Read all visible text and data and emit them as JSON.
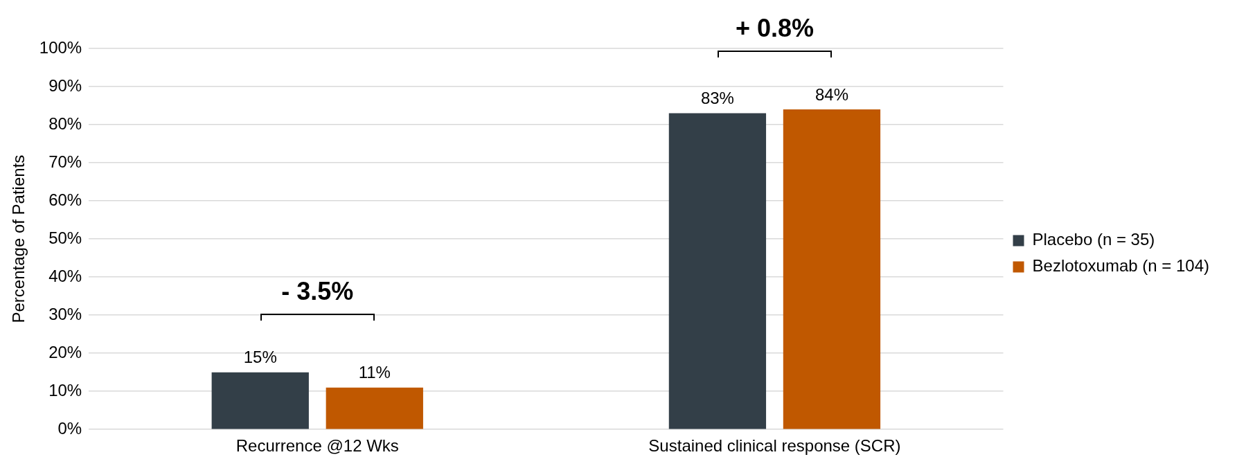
{
  "chart_data": {
    "type": "bar",
    "ylabel": "Percentage of Patients",
    "categories": [
      "Recurrence @12 Wks",
      "Sustained clinical response (SCR)"
    ],
    "series": [
      {
        "name": "Placebo (n = 35)",
        "color": "#333f48",
        "values": [
          15,
          83
        ],
        "value_labels": [
          "15%",
          "83%"
        ]
      },
      {
        "name": "Bezlotoxumab (n = 104)",
        "color": "#c05800",
        "values": [
          11,
          84
        ],
        "value_labels": [
          "11%",
          "84%"
        ]
      }
    ],
    "ylim": [
      0,
      100
    ],
    "yticks": [
      {
        "value": 0,
        "label": "0%"
      },
      {
        "value": 10,
        "label": "10%"
      },
      {
        "value": 20,
        "label": "20%"
      },
      {
        "value": 30,
        "label": "30%"
      },
      {
        "value": 40,
        "label": "40%"
      },
      {
        "value": 50,
        "label": "50%"
      },
      {
        "value": 60,
        "label": "60%"
      },
      {
        "value": 70,
        "label": "70%"
      },
      {
        "value": 80,
        "label": "80%"
      },
      {
        "value": 90,
        "label": "90%"
      },
      {
        "value": 100,
        "label": "100%"
      }
    ],
    "annotations": [
      "- 3.5%",
      "+ 0.8%"
    ],
    "grid": "y",
    "legend": "right"
  }
}
